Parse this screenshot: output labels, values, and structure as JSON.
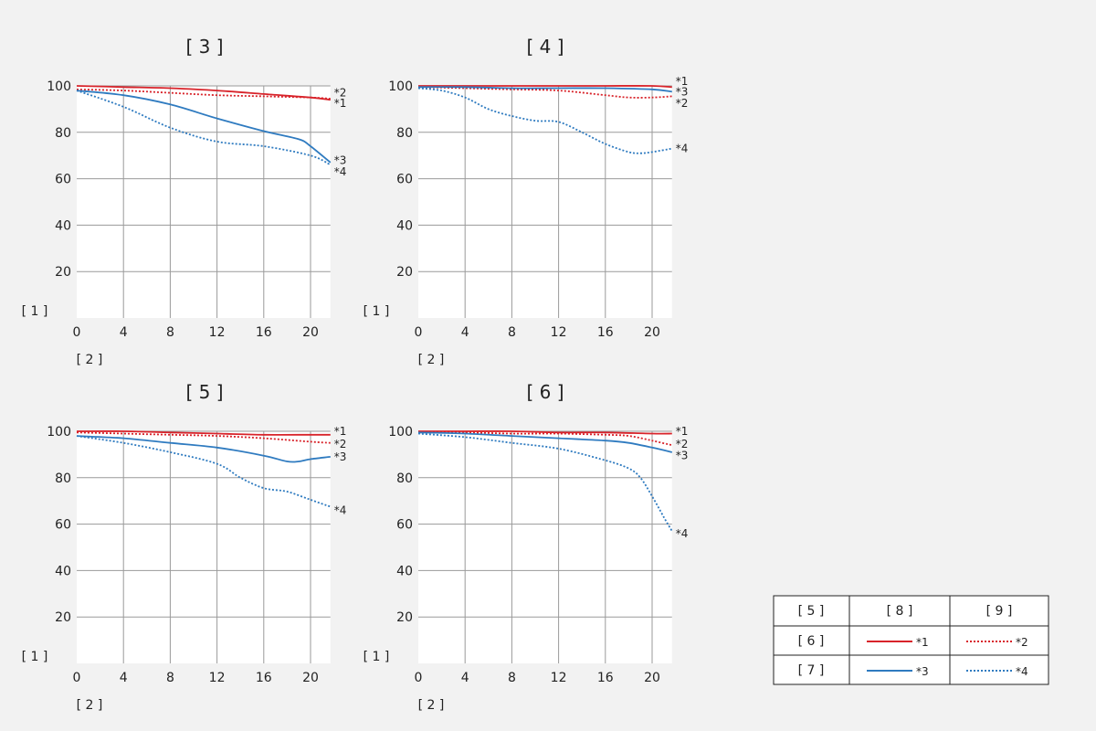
{
  "colors": {
    "red": "#d8232a",
    "blue": "#2f7bc0",
    "grid": "#9a9a9a",
    "plot_bg": "#ffffff",
    "page_bg": "#f2f2f2"
  },
  "chart_data": [
    {
      "type": "line",
      "title": "[ 3 ]",
      "ylabel": "[ 1 ]",
      "xlabel": "[ 2 ]",
      "xlim": [
        0,
        21.7
      ],
      "ylim": [
        0,
        100
      ],
      "xticks": [
        "0",
        "4",
        "8",
        "12",
        "16",
        "20"
      ],
      "yticks": [
        "20",
        "40",
        "60",
        "80",
        "100"
      ],
      "series": [
        {
          "name": "*1",
          "color": "red",
          "style": "solid",
          "x": [
            0,
            4,
            8,
            12,
            16,
            20,
            21.7
          ],
          "y": [
            100,
            99.5,
            99,
            98,
            96.5,
            95,
            94
          ]
        },
        {
          "name": "*2",
          "color": "red",
          "style": "dotted",
          "x": [
            0,
            4,
            8,
            12,
            16,
            20,
            21.7
          ],
          "y": [
            98.5,
            98,
            97,
            96,
            95.5,
            95,
            94.5
          ]
        },
        {
          "name": "*3",
          "color": "blue",
          "style": "solid",
          "x": [
            0,
            4,
            8,
            12,
            16,
            19,
            20,
            21.7
          ],
          "y": [
            98,
            96,
            92,
            86,
            80.5,
            77,
            74,
            67
          ]
        },
        {
          "name": "*4",
          "color": "blue",
          "style": "dotted",
          "x": [
            0,
            4,
            8,
            12,
            16,
            20,
            21.7
          ],
          "y": [
            98,
            91,
            82,
            76,
            74,
            70,
            66
          ]
        }
      ],
      "end_labels": [
        {
          "text": "*2",
          "y": 97
        },
        {
          "text": "*1",
          "y": 92.5
        },
        {
          "text": "*3",
          "y": 68
        },
        {
          "text": "*4",
          "y": 63
        }
      ]
    },
    {
      "type": "line",
      "title": "[ 4 ]",
      "ylabel": "[ 1 ]",
      "xlabel": "[ 2 ]",
      "xlim": [
        0,
        21.7
      ],
      "ylim": [
        0,
        100
      ],
      "xticks": [
        "0",
        "4",
        "8",
        "12",
        "16",
        "20"
      ],
      "yticks": [
        "20",
        "40",
        "60",
        "80",
        "100"
      ],
      "series": [
        {
          "name": "*1",
          "color": "red",
          "style": "solid",
          "x": [
            0,
            4,
            8,
            12,
            16,
            20,
            21.7
          ],
          "y": [
            100,
            100,
            100,
            100,
            100,
            100,
            99.5
          ]
        },
        {
          "name": "*2",
          "color": "red",
          "style": "dotted",
          "x": [
            0,
            4,
            8,
            12,
            16,
            18,
            20,
            21.7
          ],
          "y": [
            99.5,
            99,
            98.5,
            98,
            96,
            95,
            95,
            95.5
          ]
        },
        {
          "name": "*3",
          "color": "blue",
          "style": "solid",
          "x": [
            0,
            4,
            8,
            12,
            16,
            20,
            21.7
          ],
          "y": [
            99.5,
            99.5,
            99,
            99,
            99,
            98.5,
            97.5
          ]
        },
        {
          "name": "*4",
          "color": "blue",
          "style": "dotted",
          "x": [
            0,
            2,
            4,
            6,
            8,
            10,
            12,
            14,
            16,
            18,
            19,
            20,
            21.7
          ],
          "y": [
            99,
            98,
            95,
            90,
            87,
            85,
            84.5,
            80,
            75,
            71.5,
            71,
            71.5,
            73
          ]
        }
      ],
      "end_labels": [
        {
          "text": "*1",
          "y": 102
        },
        {
          "text": "*3",
          "y": 97.5
        },
        {
          "text": "*2",
          "y": 92.5
        },
        {
          "text": "*4",
          "y": 73
        }
      ]
    },
    {
      "type": "line",
      "title": "[ 5 ]",
      "ylabel": "[ 1 ]",
      "xlabel": "[ 2 ]",
      "xlim": [
        0,
        21.7
      ],
      "ylim": [
        0,
        100
      ],
      "xticks": [
        "0",
        "4",
        "8",
        "12",
        "16",
        "20"
      ],
      "yticks": [
        "20",
        "40",
        "60",
        "80",
        "100"
      ],
      "series": [
        {
          "name": "*1",
          "color": "red",
          "style": "solid",
          "x": [
            0,
            4,
            8,
            12,
            16,
            20,
            21.7
          ],
          "y": [
            100,
            100,
            99.5,
            99,
            98.5,
            98.5,
            98.5
          ]
        },
        {
          "name": "*2",
          "color": "red",
          "style": "dotted",
          "x": [
            0,
            4,
            8,
            12,
            16,
            20,
            21.7
          ],
          "y": [
            99.5,
            99,
            98.5,
            98,
            97,
            95.5,
            95
          ]
        },
        {
          "name": "*3",
          "color": "blue",
          "style": "solid",
          "x": [
            0,
            4,
            8,
            12,
            16,
            18,
            19,
            20,
            21.7
          ],
          "y": [
            98,
            97,
            95,
            93,
            89.5,
            87,
            87,
            88,
            89
          ]
        },
        {
          "name": "*4",
          "color": "blue",
          "style": "dotted",
          "x": [
            0,
            4,
            8,
            12,
            14,
            16,
            18,
            20,
            21.7
          ],
          "y": [
            98,
            95,
            91,
            86,
            80,
            75.5,
            74,
            70.5,
            67.5
          ]
        }
      ],
      "end_labels": [
        {
          "text": "*1",
          "y": 100
        },
        {
          "text": "*2",
          "y": 94.5
        },
        {
          "text": "*3",
          "y": 89
        },
        {
          "text": "*4",
          "y": 66
        }
      ]
    },
    {
      "type": "line",
      "title": "[ 6 ]",
      "ylabel": "[ 1 ]",
      "xlabel": "[ 2 ]",
      "xlim": [
        0,
        21.7
      ],
      "ylim": [
        0,
        100
      ],
      "xticks": [
        "0",
        "4",
        "8",
        "12",
        "16",
        "20"
      ],
      "yticks": [
        "20",
        "40",
        "60",
        "80",
        "100"
      ],
      "series": [
        {
          "name": "*1",
          "color": "red",
          "style": "solid",
          "x": [
            0,
            4,
            8,
            12,
            16,
            20,
            21.7
          ],
          "y": [
            100,
            100,
            100,
            99.5,
            99.5,
            99,
            99
          ]
        },
        {
          "name": "*2",
          "color": "red",
          "style": "dotted",
          "x": [
            0,
            4,
            8,
            12,
            16,
            18,
            20,
            21.7
          ],
          "y": [
            99.5,
            99.5,
            99,
            99,
            98.5,
            98,
            96,
            94
          ]
        },
        {
          "name": "*3",
          "color": "blue",
          "style": "solid",
          "x": [
            0,
            4,
            8,
            12,
            16,
            18,
            20,
            21.7
          ],
          "y": [
            99.5,
            99,
            98,
            97,
            96,
            95,
            93,
            91
          ]
        },
        {
          "name": "*4",
          "color": "blue",
          "style": "dotted",
          "x": [
            0,
            4,
            8,
            12,
            16,
            18,
            19,
            20,
            21,
            21.7
          ],
          "y": [
            99,
            97.5,
            95,
            92.5,
            87.5,
            84,
            80,
            72,
            63,
            57
          ]
        }
      ],
      "end_labels": [
        {
          "text": "*1",
          "y": 100
        },
        {
          "text": "*2",
          "y": 94.5
        },
        {
          "text": "*3",
          "y": 89.5
        },
        {
          "text": "*4",
          "y": 56
        }
      ]
    }
  ],
  "legend": {
    "header": [
      "[ 5 ]",
      "[ 8 ]",
      "[ 9 ]"
    ],
    "rows": [
      {
        "label": "[ 6 ]",
        "a": {
          "name": "*1",
          "color": "red",
          "style": "solid"
        },
        "b": {
          "name": "*2",
          "color": "red",
          "style": "dotted"
        }
      },
      {
        "label": "[ 7 ]",
        "a": {
          "name": "*3",
          "color": "blue",
          "style": "solid"
        },
        "b": {
          "name": "*4",
          "color": "blue",
          "style": "dotted"
        }
      }
    ]
  }
}
